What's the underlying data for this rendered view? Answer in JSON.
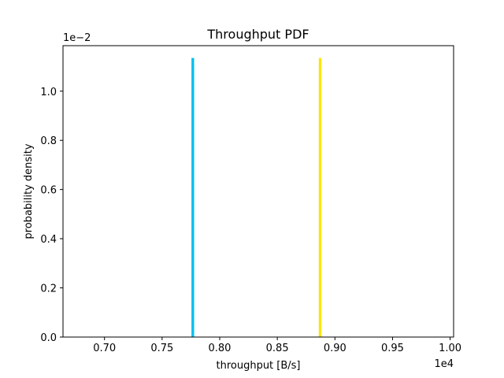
{
  "chart_data": {
    "type": "bar",
    "title": "Throughput PDF",
    "xlabel": "throughput [B/s]",
    "ylabel": "probability density",
    "x_offset_label": "1e4",
    "y_offset_label": "1e−2",
    "xlim": [
      6640,
      10030
    ],
    "ylim": [
      0,
      0.01185
    ],
    "x_ticks": [
      7000,
      7500,
      8000,
      8500,
      9000,
      9500,
      10000
    ],
    "x_tick_labels": [
      "0.70",
      "0.75",
      "0.80",
      "0.85",
      "0.90",
      "0.95",
      "1.00"
    ],
    "y_ticks": [
      0,
      0.002,
      0.004,
      0.006,
      0.008,
      0.01
    ],
    "y_tick_labels": [
      "0.0",
      "0.2",
      "0.4",
      "0.6",
      "0.8",
      "1.0"
    ],
    "grid": false,
    "series": [
      {
        "x_start": 7755,
        "x_end": 7778,
        "value": 0.01135,
        "color": "#00c0f0"
      },
      {
        "x_start": 8860,
        "x_end": 8883,
        "value": 0.01135,
        "color": "#ffe400"
      }
    ]
  }
}
